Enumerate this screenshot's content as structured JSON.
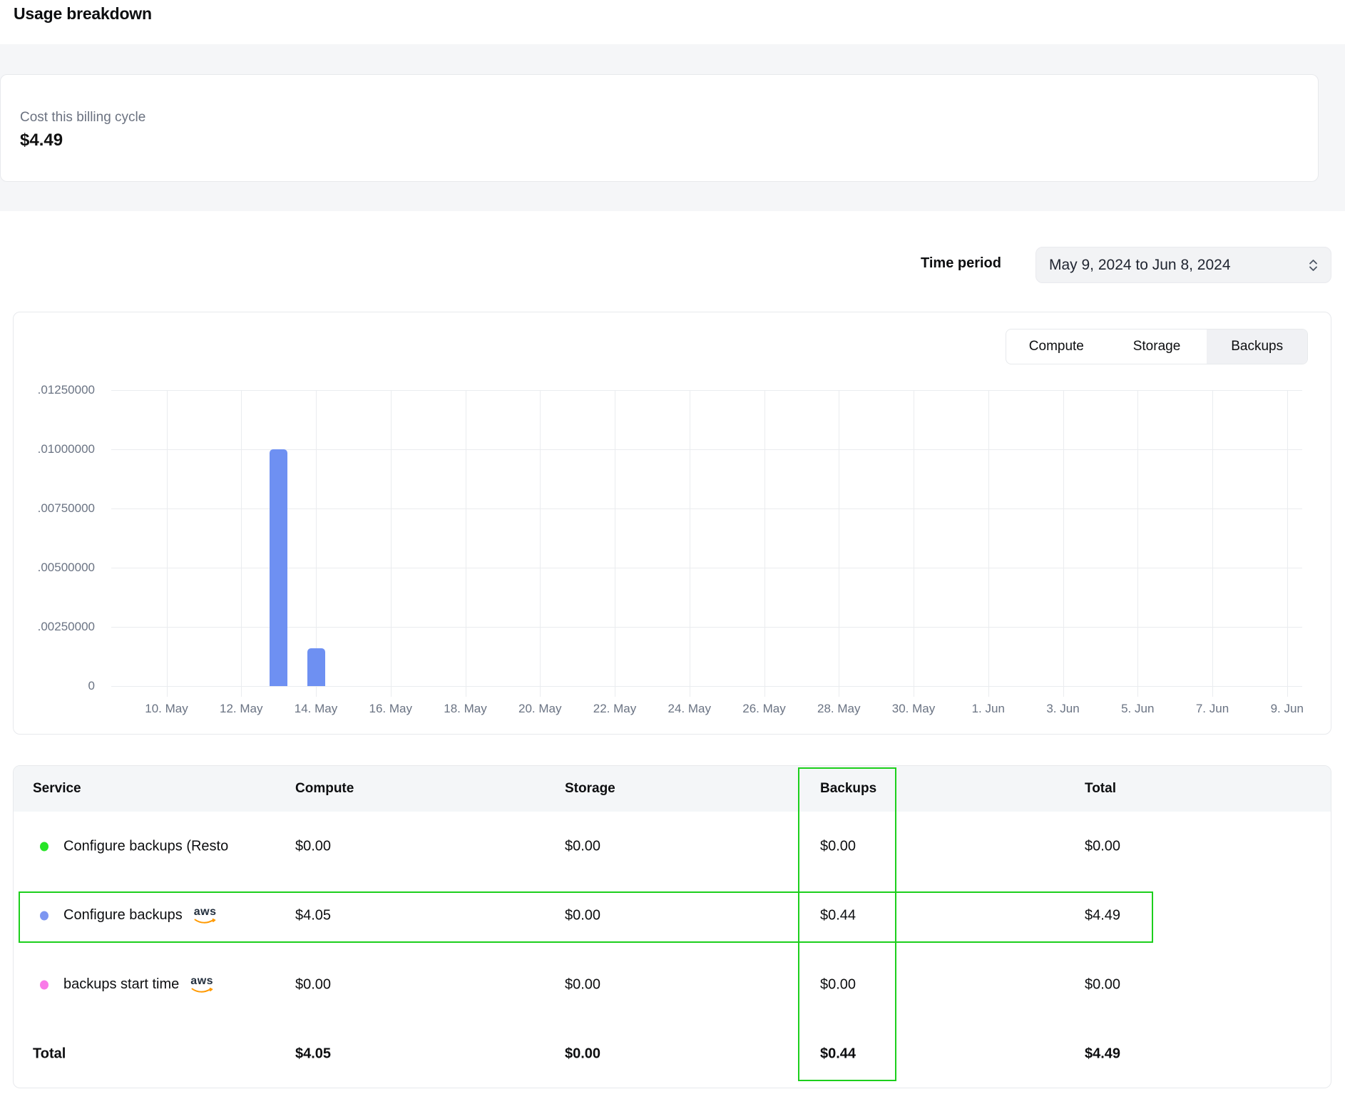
{
  "page": {
    "title": "Usage breakdown"
  },
  "billing_summary": {
    "label": "Cost this billing cycle",
    "value": "$4.49"
  },
  "time_period": {
    "label": "Time period",
    "value": "May 9, 2024 to Jun 8, 2024"
  },
  "usage_chart": {
    "tabs": [
      {
        "label": "Compute",
        "selected": false
      },
      {
        "label": "Storage",
        "selected": false
      },
      {
        "label": "Backups",
        "selected": true
      }
    ]
  },
  "chart_data": {
    "type": "bar",
    "series_name": "Backups usage",
    "title": "",
    "xlabel": "",
    "ylabel": "",
    "ylim": [
      0,
      0.0125
    ],
    "grid": true,
    "legend": "none",
    "y_tick_labels": [
      ".01250000",
      ".01000000",
      ".00750000",
      ".00500000",
      ".00250000",
      "0"
    ],
    "x_tick_labels": [
      "10. May",
      "12. May",
      "14. May",
      "16. May",
      "18. May",
      "20. May",
      "22. May",
      "24. May",
      "26. May",
      "28. May",
      "30. May",
      "1. Jun",
      "3. Jun",
      "5. Jun",
      "7. Jun",
      "9. Jun"
    ],
    "x_range": [
      "9. May",
      "9. Jun"
    ],
    "bars": [
      {
        "date": "13. May",
        "days_from_range_start": 4,
        "value": 0.01
      },
      {
        "date": "14. May",
        "days_from_range_start": 5,
        "value": 0.0016
      }
    ],
    "bar_color": "#6e90f2"
  },
  "usage_table": {
    "headers": [
      "Service",
      "Compute",
      "Storage",
      "Backups",
      "Total"
    ],
    "rows": [
      {
        "dot_color": "#27e427",
        "service": "Configure backups (Resto",
        "aws_badge": false,
        "compute": "$0.00",
        "storage": "$0.00",
        "backups": "$0.00",
        "total": "$0.00",
        "highlighted": false
      },
      {
        "dot_color": "#7d96f1",
        "service": "Configure backups",
        "aws_badge": true,
        "compute": "$4.05",
        "storage": "$0.00",
        "backups": "$0.44",
        "total": "$4.49",
        "highlighted": true
      },
      {
        "dot_color": "#f97ae8",
        "service": "backups start time",
        "aws_badge": true,
        "compute": "$0.00",
        "storage": "$0.00",
        "backups": "$0.00",
        "total": "$0.00",
        "highlighted": false
      }
    ],
    "total_row": {
      "label": "Total",
      "compute": "$4.05",
      "storage": "$0.00",
      "backups": "$0.44",
      "total": "$4.49"
    },
    "aws_badge_text": "aws"
  },
  "annotations": {
    "highlight_color": "#1ccf1c",
    "highlighted_column": "Backups",
    "highlighted_row_service": "Configure backups"
  }
}
